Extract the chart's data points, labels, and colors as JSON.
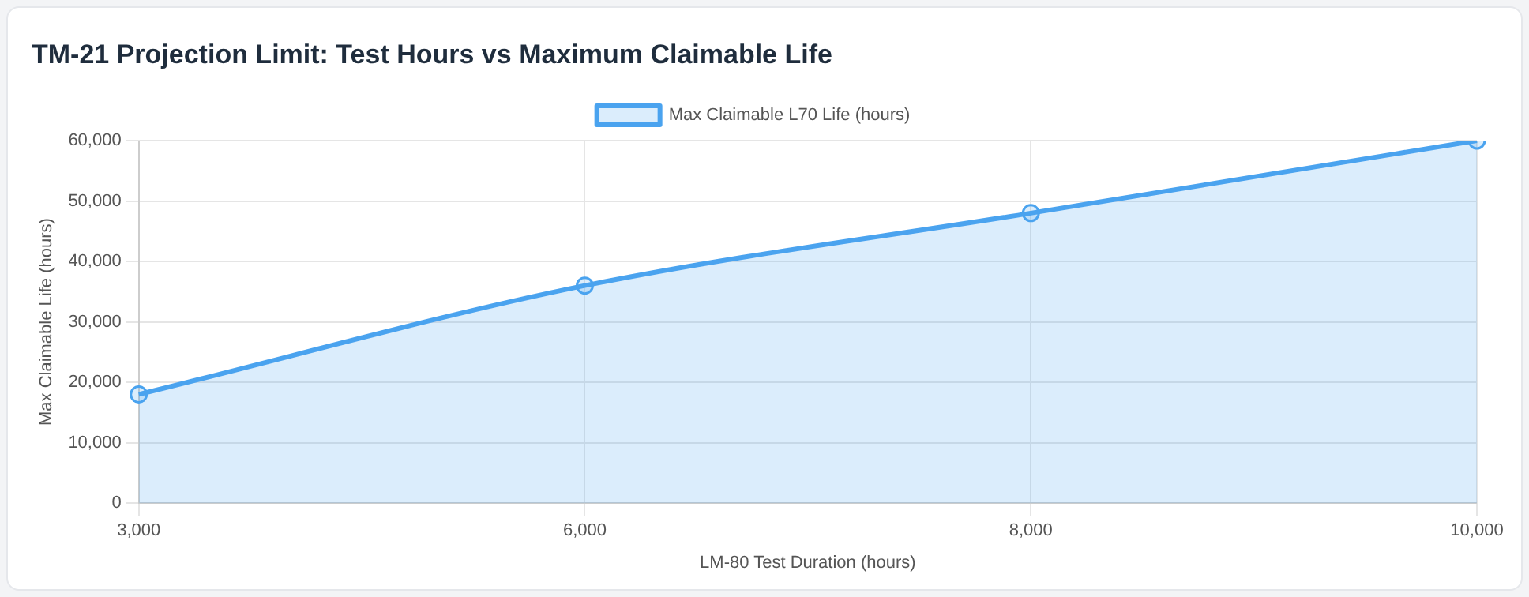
{
  "chart_data": {
    "type": "area",
    "title": "TM-21 Projection Limit: Test Hours vs Maximum Claimable Life",
    "xlabel": "LM-80 Test Duration (hours)",
    "ylabel": "Max Claimable Life (hours)",
    "categories": [
      "3,000",
      "6,000",
      "8,000",
      "10,000"
    ],
    "series": [
      {
        "name": "Max Claimable L70 Life (hours)",
        "color": "#4aa3ef",
        "values": [
          18000,
          36000,
          48000,
          60000
        ]
      }
    ],
    "ylim": [
      0,
      60000
    ],
    "yticks": [
      0,
      {
        "value": 10000,
        "label": "10,000"
      },
      {
        "value": 20000,
        "label": "20,000"
      },
      {
        "value": 30000,
        "label": "30,000"
      },
      {
        "value": 40000,
        "label": "40,000"
      },
      {
        "value": 50000,
        "label": "50,000"
      },
      {
        "value": 60000,
        "label": "60,000"
      }
    ],
    "grid": true,
    "legend": "top",
    "marker": "circle",
    "line_style": "solid"
  }
}
